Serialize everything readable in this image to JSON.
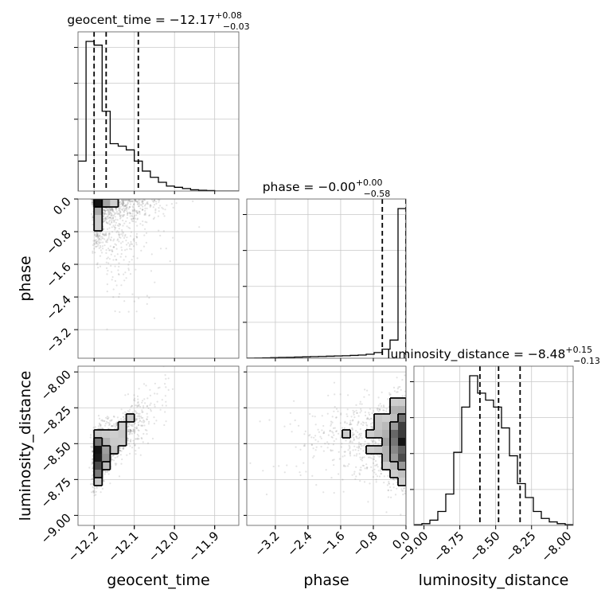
{
  "chart_data": {
    "type": "corner",
    "parameters": [
      "geocent_time",
      "phase",
      "luminosity_distance"
    ],
    "axis_labels": [
      "geocent_time",
      "phase",
      "luminosity_distance"
    ],
    "titles": [
      {
        "main": "geocent_time = −12.17",
        "sup": "+0.08",
        "sub": "−0.03"
      },
      {
        "main": "phase = −0.00",
        "sup": "+0.00",
        "sub": "−0.58"
      },
      {
        "main": "luminosity_distance = −8.48",
        "sup": "+0.15",
        "sub": "−0.13"
      }
    ],
    "ranges": {
      "geocent_time": [
        -12.24,
        -11.84
      ],
      "phase": [
        -3.9,
        0.0
      ],
      "luminosity_distance": [
        -9.07,
        -7.96
      ]
    },
    "ticks": {
      "geocent_time": [
        -12.2,
        -12.1,
        -12.0,
        -11.9
      ],
      "phase": [
        -3.2,
        -2.4,
        -1.6,
        -0.8,
        0.0
      ],
      "luminosity_distance": [
        -9.0,
        -8.75,
        -8.5,
        -8.25,
        -8.0
      ]
    },
    "tick_labels": {
      "geocent_time": [
        "−12.2",
        "−12.1",
        "−12.0",
        "−11.9"
      ],
      "phase": [
        "−3.2",
        "−2.4",
        "−1.6",
        "−0.8",
        "0.0"
      ],
      "luminosity_distance": [
        "−9.00",
        "−8.75",
        "−8.50",
        "−8.25",
        "−8.00"
      ]
    },
    "quantiles": {
      "geocent_time": [
        -12.2,
        -12.17,
        -12.09
      ],
      "phase": [
        -0.58,
        0.0,
        0.0
      ],
      "luminosity_distance": [
        -8.61,
        -8.48,
        -8.33
      ]
    },
    "histograms": {
      "geocent_time": {
        "edges": [
          -12.24,
          -12.22,
          -12.2,
          -12.18,
          -12.16,
          -12.14,
          -12.12,
          -12.1,
          -12.08,
          -12.06,
          -12.04,
          -12.02,
          -12.0,
          -11.98,
          -11.96,
          -11.94,
          -11.92,
          -11.9,
          -11.88,
          -11.86,
          -11.84
        ],
        "counts": [
          120,
          600,
          585,
          320,
          190,
          180,
          165,
          120,
          80,
          55,
          35,
          20,
          15,
          10,
          5,
          3,
          2,
          0,
          0,
          0
        ]
      },
      "phase": {
        "edges": [
          -3.9,
          -3.705,
          -3.51,
          -3.315,
          -3.12,
          -2.925,
          -2.73,
          -2.535,
          -2.34,
          -2.145,
          -1.95,
          -1.755,
          -1.56,
          -1.365,
          -1.17,
          -0.975,
          -0.78,
          -0.585,
          -0.39,
          -0.195,
          0.0
        ],
        "counts": [
          1,
          2,
          3,
          5,
          7,
          8,
          10,
          12,
          14,
          16,
          18,
          20,
          22,
          25,
          28,
          35,
          50,
          80,
          160,
          1320
        ]
      },
      "luminosity_distance": {
        "edges": [
          -9.07,
          -9.0145,
          -8.959,
          -8.9035,
          -8.848,
          -8.7925,
          -8.737,
          -8.6815,
          -8.626,
          -8.5705,
          -8.515,
          -8.4595,
          -8.404,
          -8.3485,
          -8.293,
          -8.2375,
          -8.182,
          -8.1265,
          -8.071,
          -8.0155,
          -7.96
        ],
        "counts": [
          2,
          5,
          15,
          40,
          90,
          210,
          340,
          430,
          380,
          360,
          340,
          280,
          200,
          120,
          80,
          40,
          20,
          10,
          5,
          2
        ]
      }
    },
    "samples_2d": [
      {
        "x": "geocent_time",
        "y": "phase",
        "n": 1600,
        "seed": 11
      },
      {
        "x": "geocent_time",
        "y": "luminosity_distance",
        "n": 1600,
        "seed": 23
      },
      {
        "x": "phase",
        "y": "luminosity_distance",
        "n": 1600,
        "seed": 37
      }
    ],
    "colors": {
      "line": "#000000",
      "points": "#808080",
      "grid": "#c8c8c8"
    }
  }
}
